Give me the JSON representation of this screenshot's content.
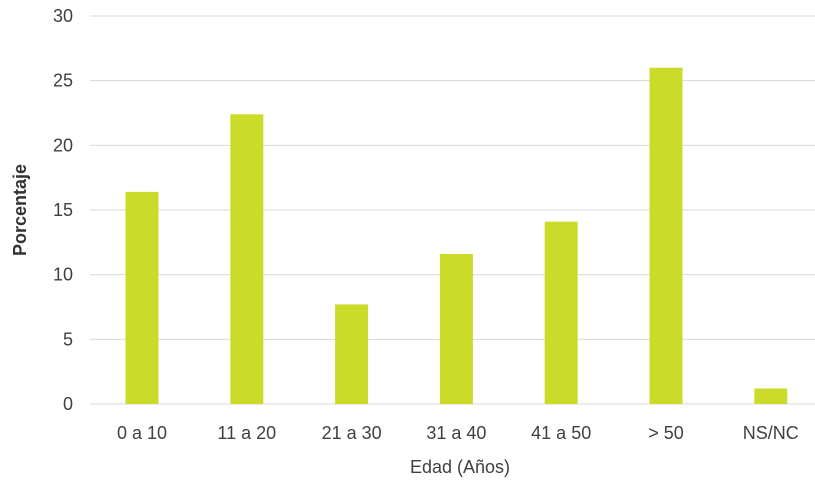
{
  "chart_data": {
    "type": "bar",
    "categories": [
      "0 a 10",
      "11 a 20",
      "21 a 30",
      "31 a 40",
      "41 a 50",
      "> 50",
      "NS/NC"
    ],
    "values": [
      16.4,
      22.4,
      7.7,
      11.6,
      14.1,
      26.0,
      1.2
    ],
    "title": "",
    "xlabel": "Edad (Años)",
    "ylabel": "Porcentaje",
    "ylim": [
      0,
      30
    ],
    "yticks": [
      0,
      5,
      10,
      15,
      20,
      25,
      30
    ],
    "grid": true,
    "legend": "none",
    "bar_color": "#cbdb2a"
  }
}
